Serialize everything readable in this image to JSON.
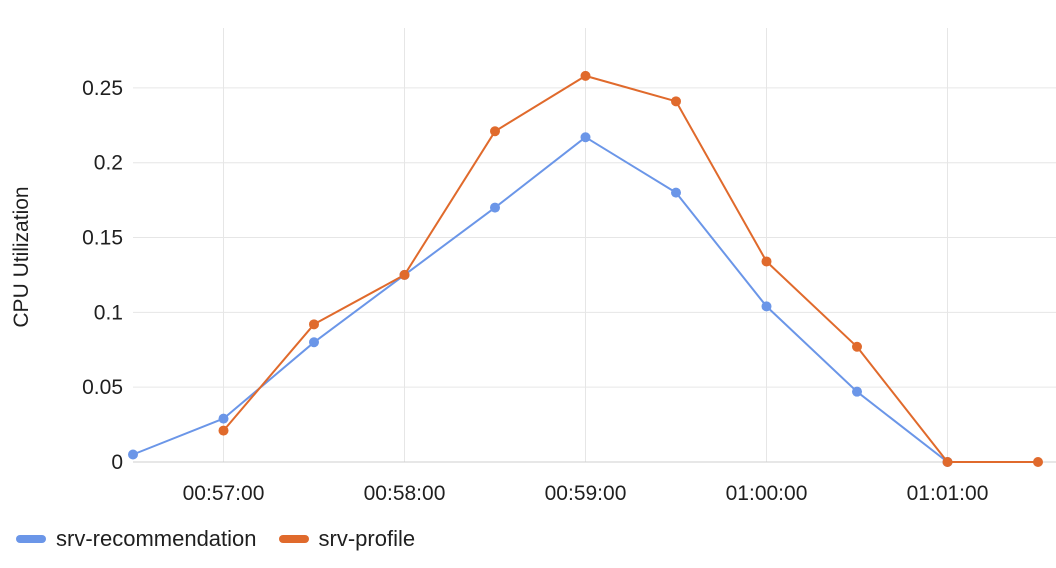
{
  "chart_data": {
    "type": "line",
    "ylabel": "CPU Utilization",
    "xlabel": "",
    "x_tick_labels": [
      "00:57:00",
      "00:58:00",
      "00:59:00",
      "01:00:00",
      "01:01:00"
    ],
    "y_tick_labels": [
      "0",
      "0.05",
      "0.1",
      "0.15",
      "0.2",
      "0.25"
    ],
    "ylim": [
      0,
      0.29
    ],
    "x_unit": "seconds after 00:56:30",
    "xlim": [
      0,
      315
    ],
    "grid": true,
    "legend_position": "bottom-left",
    "series": [
      {
        "name": "srv-recommendation",
        "color": "#6b96e8",
        "x": [
          0,
          30,
          60,
          90,
          120,
          150,
          180,
          210,
          240,
          270
        ],
        "values": [
          0.005,
          0.029,
          0.08,
          0.125,
          0.17,
          0.217,
          0.18,
          0.104,
          0.047,
          0.0
        ]
      },
      {
        "name": "srv-profile",
        "color": "#e06a2c",
        "x": [
          30,
          60,
          90,
          120,
          150,
          180,
          210,
          240,
          270,
          300
        ],
        "values": [
          0.021,
          0.092,
          0.125,
          0.221,
          0.258,
          0.241,
          0.134,
          0.077,
          0.0,
          0.0
        ]
      }
    ]
  }
}
